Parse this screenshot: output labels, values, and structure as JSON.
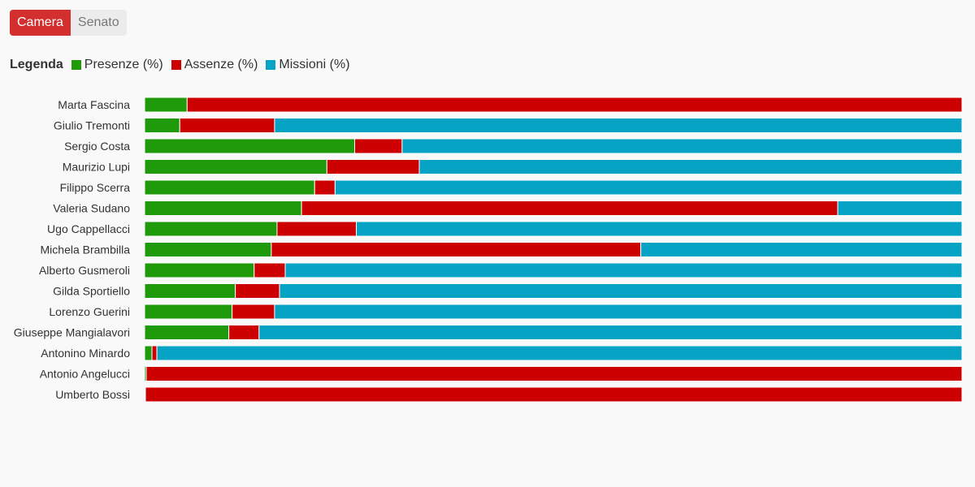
{
  "tabs": [
    {
      "label": "Camera",
      "active": true
    },
    {
      "label": "Senato",
      "active": false
    }
  ],
  "legend": {
    "title": "Legenda",
    "items": [
      {
        "label": "Presenze (%)",
        "color": "#1e9a0a"
      },
      {
        "label": "Assenze (%)",
        "color": "#cc0000"
      },
      {
        "label": "Missioni (%)",
        "color": "#06a3c4"
      }
    ]
  },
  "chart_data": {
    "type": "bar",
    "orientation": "horizontal",
    "stacked": true,
    "xlim": [
      0,
      100
    ],
    "categories": [
      "Marta Fascina",
      "Giulio Tremonti",
      "Sergio Costa",
      "Maurizio Lupi",
      "Filippo Scerra",
      "Valeria Sudano",
      "Ugo Cappellacci",
      "Michela Brambilla",
      "Alberto Gusmeroli",
      "Gilda Sportiello",
      "Lorenzo Guerini",
      "Giuseppe Mangialavori",
      "Antonino Minardo",
      "Antonio Angelucci",
      "Umberto Bossi"
    ],
    "series": [
      {
        "name": "Presenze (%)",
        "color": "#1e9a0a",
        "values": [
          5.2,
          4.3,
          25.7,
          22.3,
          20.8,
          19.2,
          16.2,
          15.5,
          13.4,
          11.1,
          10.7,
          10.3,
          0.9,
          0.2,
          0.1
        ]
      },
      {
        "name": "Assenze (%)",
        "color": "#cc0000",
        "values": [
          94.8,
          11.6,
          5.8,
          11.3,
          2.5,
          65.6,
          9.7,
          45.2,
          3.8,
          5.4,
          5.2,
          3.7,
          0.6,
          99.8,
          99.9
        ]
      },
      {
        "name": "Missioni (%)",
        "color": "#06a3c4",
        "values": [
          0.0,
          84.1,
          68.5,
          66.4,
          76.7,
          15.2,
          74.1,
          39.3,
          82.8,
          83.5,
          84.1,
          86.0,
          98.5,
          0.0,
          0.0
        ]
      }
    ]
  }
}
